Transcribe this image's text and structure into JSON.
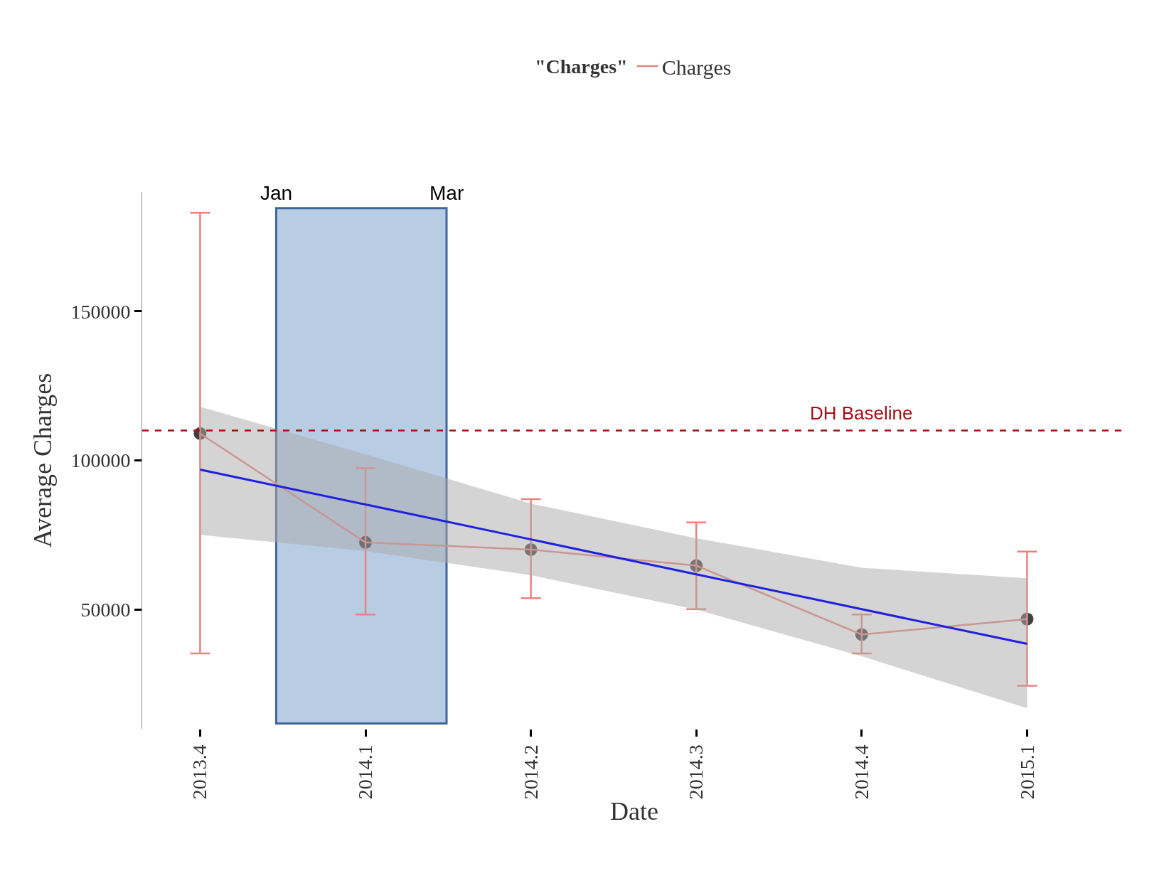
{
  "chart_data": {
    "type": "line",
    "xlabel": "Date",
    "ylabel": "Average Charges",
    "legend_title": "\"Charges\"",
    "categories": [
      "2013.4",
      "2014.1",
      "2014.2",
      "2014.3",
      "2014.4",
      "2015.1"
    ],
    "series": [
      {
        "name": "Charges",
        "color": "#e8837c",
        "values": [
          109000,
          72500,
          70100,
          64700,
          41600,
          46800
        ],
        "errors": [
          [
            35300,
            183000
          ],
          [
            48300,
            97400
          ],
          [
            53800,
            87000
          ],
          [
            50100,
            79200
          ],
          [
            35300,
            48300
          ],
          [
            24400,
            69400
          ]
        ],
        "marker": "circle"
      },
      {
        "type": "line",
        "color": "#1f1fe0",
        "values": [
          96900,
          85200,
          73500,
          61800,
          50100,
          38500
        ],
        "lower": [
          75000,
          69600,
          61500,
          50000,
          34300,
          16900
        ],
        "upper": [
          118000,
          102000,
          85500,
          73900,
          64000,
          60500
        ],
        "marker": "none"
      }
    ],
    "ylim": [
      10000,
      190000
    ],
    "yticks": [
      50000,
      100000,
      150000
    ],
    "annotations": [
      "Jan",
      "Mar"
    ],
    "ref_lines": [
      {
        "axis": "y",
        "value": 110000,
        "label": "DH Baseline",
        "color": "#a50f15",
        "line_style": "dashed"
      }
    ],
    "grid": false,
    "legend": "top"
  }
}
